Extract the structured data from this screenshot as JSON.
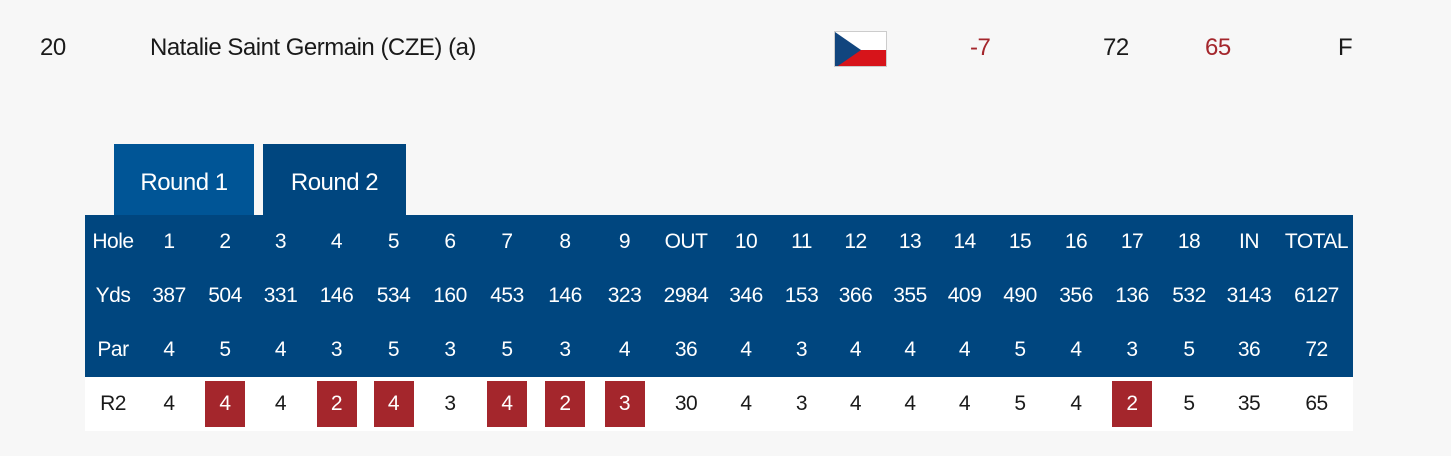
{
  "player": {
    "position": "20",
    "name": "Natalie Saint Germain (CZE) (a)",
    "country_flag": "czech-flag",
    "to_par": "-7",
    "round1": "72",
    "round2": "65",
    "thru": "F"
  },
  "tabs": [
    {
      "label": "Round 1",
      "active": false
    },
    {
      "label": "Round 2",
      "active": true
    }
  ],
  "colors": {
    "tab_inactive": "#005596",
    "header": "#00467f",
    "under_par": "#a4262c"
  },
  "scorecard": {
    "header": [
      "Hole",
      "1",
      "2",
      "3",
      "4",
      "5",
      "6",
      "7",
      "8",
      "9",
      "OUT",
      "10",
      "11",
      "12",
      "13",
      "14",
      "15",
      "16",
      "17",
      "18",
      "IN",
      "TOTAL"
    ],
    "yards": [
      "Yds",
      "387",
      "504",
      "331",
      "146",
      "534",
      "160",
      "453",
      "146",
      "323",
      "2984",
      "346",
      "153",
      "366",
      "355",
      "409",
      "490",
      "356",
      "136",
      "532",
      "3143",
      "6127"
    ],
    "par": [
      "Par",
      "4",
      "5",
      "4",
      "3",
      "5",
      "3",
      "5",
      "3",
      "4",
      "36",
      "4",
      "3",
      "4",
      "4",
      "4",
      "5",
      "4",
      "3",
      "5",
      "36",
      "72"
    ],
    "score": [
      "R2",
      "4",
      "4",
      "4",
      "2",
      "4",
      "3",
      "4",
      "2",
      "3",
      "30",
      "4",
      "3",
      "4",
      "4",
      "4",
      "5",
      "4",
      "2",
      "5",
      "35",
      "65"
    ],
    "birdie_holes": [
      "2",
      "4",
      "5",
      "7",
      "8",
      "9",
      "17"
    ]
  }
}
